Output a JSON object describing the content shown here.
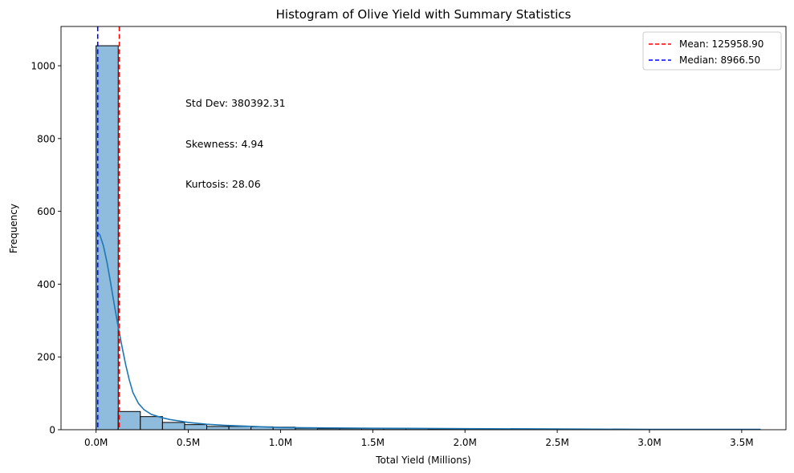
{
  "chart_data": {
    "type": "histogram",
    "title": "Histogram of Olive Yield with Summary Statistics",
    "xlabel": "Total Yield (Millions)",
    "ylabel": "Frequency",
    "xlim": [
      -190000,
      3740000
    ],
    "ylim": [
      0,
      1108
    ],
    "x_ticks": [
      {
        "value": 0,
        "label": "0.0M"
      },
      {
        "value": 500000,
        "label": "0.5M"
      },
      {
        "value": 1000000,
        "label": "1.0M"
      },
      {
        "value": 1500000,
        "label": "1.5M"
      },
      {
        "value": 2000000,
        "label": "2.0M"
      },
      {
        "value": 2500000,
        "label": "2.5M"
      },
      {
        "value": 3000000,
        "label": "3.0M"
      },
      {
        "value": 3500000,
        "label": "3.5M"
      }
    ],
    "y_ticks": [
      0,
      200,
      400,
      600,
      800,
      1000
    ],
    "bin_start": 0,
    "bin_width": 120000,
    "counts": [
      1055,
      50,
      36,
      20,
      14,
      9,
      9,
      8,
      7,
      4,
      3,
      3,
      3,
      3,
      3,
      2,
      2,
      2,
      2,
      1,
      1,
      2,
      1,
      1,
      1,
      1,
      1,
      1,
      1,
      1
    ],
    "kde": {
      "x": [
        0,
        20000,
        40000,
        60000,
        80000,
        100000,
        120000,
        140000,
        160000,
        180000,
        200000,
        230000,
        260000,
        300000,
        350000,
        400000,
        450000,
        500000,
        600000,
        700000,
        800000,
        900000,
        1000000,
        1200000,
        1500000,
        2000000,
        2500000,
        3000000,
        3600000
      ],
      "y": [
        545,
        536,
        505,
        458,
        400,
        340,
        282,
        230,
        180,
        137,
        102,
        72,
        55,
        42,
        34,
        28,
        24,
        20,
        15,
        12,
        10,
        8,
        6,
        5,
        4,
        3,
        2,
        1,
        1
      ]
    },
    "lines": [
      {
        "name": "Mean: 125958.90",
        "value": 125958.9,
        "color": "#ff0000",
        "style": "dashed"
      },
      {
        "name": "Median: 8966.50",
        "value": 8966.5,
        "color": "#0000ff",
        "style": "dashed"
      }
    ],
    "annotations": [
      {
        "text": "Std Dev: 380392.31"
      },
      {
        "text": "Skewness: 4.94"
      },
      {
        "text": "Kurtosis: 28.06"
      }
    ],
    "legend_position": "top-right",
    "bar_color": "#8fbbdc",
    "bar_edge_color": "#000000",
    "kde_color": "#1f77b4",
    "grid": false
  }
}
